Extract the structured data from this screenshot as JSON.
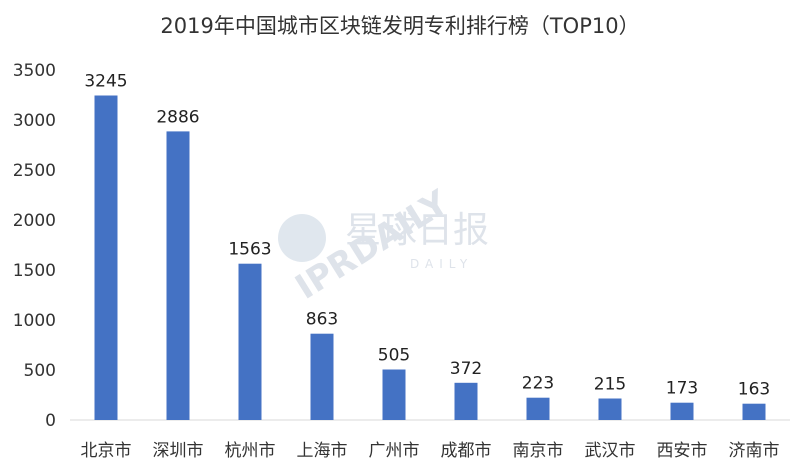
{
  "chart_data": {
    "type": "bar",
    "title": "2019年中国城市区块链发明专利排行榜（TOP10）",
    "categories": [
      "北京市",
      "深圳市",
      "杭州市",
      "上海市",
      "广州市",
      "成都市",
      "南京市",
      "武汉市",
      "西安市",
      "济南市"
    ],
    "values": [
      3245,
      2886,
      1563,
      863,
      505,
      372,
      223,
      215,
      173,
      163
    ],
    "ylim": [
      0,
      3500
    ],
    "yticks": [
      0,
      500,
      1000,
      1500,
      2000,
      2500,
      3000,
      3500
    ],
    "xlabel": "",
    "ylabel": "",
    "grid": false,
    "legend": "none",
    "bar_color": "#4472c4",
    "data_labels": true
  },
  "watermark": {
    "cn_text": "星球日报",
    "en_text": "IPRDAILY",
    "sub_text": "DAILY",
    "color": "#d4dae3"
  }
}
